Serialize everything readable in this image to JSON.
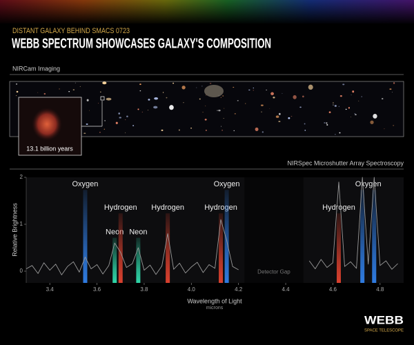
{
  "subtitle": "DISTANT GALAXY BEHIND SMACS 0723",
  "title": "WEBB SPECTRUM SHOWCASES GALAXY'S COMPOSITION",
  "imaging_label": "NIRCam Imaging",
  "inset_label": "13.1 billion years",
  "spectroscopy_label": "NIRSpec Microshutter Array Spectroscopy",
  "logo": {
    "name": "WEBB",
    "tagline": "SPACE TELESCOPE"
  },
  "chart_data": {
    "type": "line",
    "ylabel": "Relative Brightness",
    "xlabel": "Wavelength of Light",
    "xunit": "microns",
    "xlim": [
      3.3,
      4.9
    ],
    "ylim": [
      -0.25,
      2
    ],
    "xticks": [
      3.4,
      3.6,
      3.8,
      {
        "value": 4,
        "label": "4.0"
      },
      4.2,
      4.4,
      4.6,
      4.8
    ],
    "yticks": [
      0,
      1,
      2
    ],
    "x": [
      3.3,
      3.325,
      3.35,
      3.375,
      3.4,
      3.425,
      3.45,
      3.475,
      3.5,
      3.525,
      3.55,
      3.575,
      3.6,
      3.625,
      3.65,
      3.675,
      3.7,
      3.725,
      3.75,
      3.775,
      3.8,
      3.825,
      3.85,
      3.875,
      3.9,
      3.925,
      3.95,
      3.975,
      4.0,
      4.025,
      4.05,
      4.075,
      4.1,
      4.125,
      4.15,
      4.175,
      4.2,
      4.225,
      4.25,
      4.275,
      4.3,
      4.325,
      4.35,
      4.375,
      4.4,
      4.425,
      4.45,
      4.475,
      4.5,
      4.525,
      4.55,
      4.575,
      4.6,
      4.625,
      4.65,
      4.675,
      4.7,
      4.725,
      4.75,
      4.775,
      4.8,
      4.825,
      4.85,
      4.875
    ],
    "series": [
      {
        "color": "#9a9a9a",
        "values": [
          0.05,
          0.12,
          -0.05,
          0.18,
          0.02,
          0.15,
          -0.08,
          0.1,
          0.2,
          -0.02,
          0.3,
          0.05,
          0.14,
          -0.06,
          0.12,
          0.6,
          0.4,
          0.08,
          0.16,
          0.5,
          0.02,
          0.13,
          -0.07,
          0.11,
          0.8,
          0.04,
          0.17,
          -0.04,
          0.09,
          0.19,
          -0.03,
          0.14,
          0.06,
          1.1,
          0.65,
          0.1,
          0.03,
          null,
          null,
          null,
          null,
          null,
          null,
          null,
          null,
          null,
          null,
          null,
          0.22,
          0.05,
          0.25,
          0.08,
          0.18,
          1.9,
          0.1,
          0.2,
          0.06,
          2.0,
          0.15,
          2.0,
          0.12,
          0.22,
          0.04,
          0.16
        ]
      }
    ],
    "annotations": [
      {
        "text": "Oxygen",
        "x": [
          3.55
        ],
        "color": "#2f7be0"
      },
      {
        "text": "Neon",
        "x": [
          3.675
        ],
        "color": "#2fd6a8"
      },
      {
        "text": "Hydrogen",
        "x": [
          3.7
        ],
        "color": "#d9402e"
      },
      {
        "text": "Neon",
        "x": [
          3.775
        ],
        "color": "#2fd6a8"
      },
      {
        "text": "Hydrogen",
        "x": [
          3.9
        ],
        "color": "#d9402e"
      },
      {
        "text": "Hydrogen",
        "x": [
          4.125
        ],
        "color": "#d9402e"
      },
      {
        "text": "Oxygen",
        "x": [
          4.15
        ],
        "color": "#2f7be0"
      },
      {
        "text": "Hydrogen",
        "x": [
          4.625
        ],
        "color": "#d9402e"
      },
      {
        "text": "Oxygen",
        "x": [
          4.725,
          4.775
        ],
        "color": "#2f7be0"
      }
    ],
    "detector_gap": {
      "label": "Detector Gap",
      "range": [
        4.225,
        4.475
      ]
    }
  }
}
